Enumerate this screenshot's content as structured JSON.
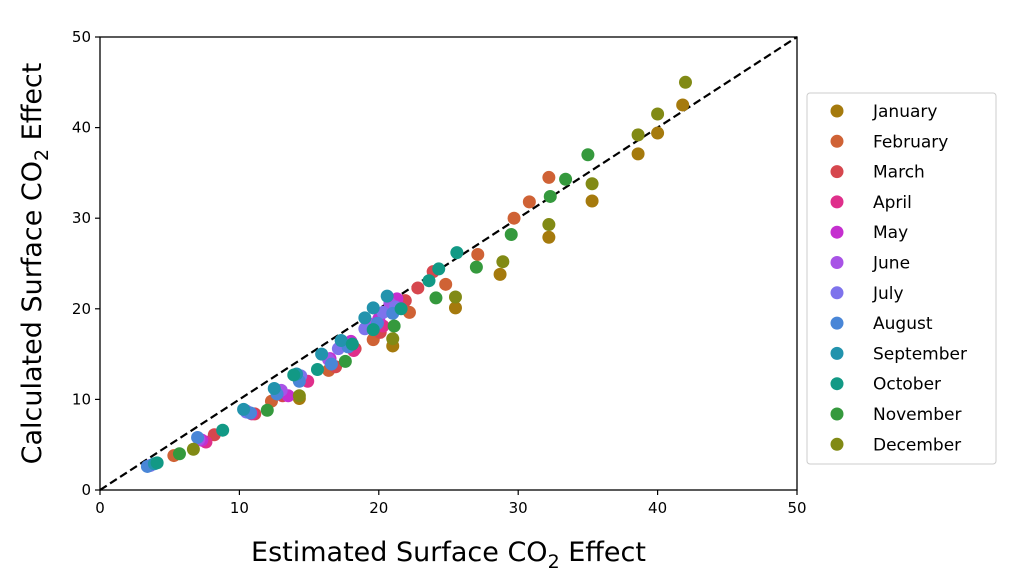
{
  "chart_data": {
    "type": "scatter",
    "xlabel": {
      "prefix": "Estimated Surface CO",
      "sub": "2",
      "suffix": " Effect"
    },
    "ylabel": {
      "prefix": "Calculated Surface CO",
      "sub": "2",
      "suffix": " Effect"
    },
    "xlim": [
      0,
      50
    ],
    "ylim": [
      0,
      50
    ],
    "xticks": [
      0,
      10,
      20,
      30,
      40,
      50
    ],
    "yticks": [
      0,
      10,
      20,
      30,
      40,
      50
    ],
    "grid": false,
    "legend_position": "outside-right",
    "reference_line": {
      "style": "dashed",
      "color": "#000000",
      "from": [
        0,
        0
      ],
      "to": [
        50,
        50
      ]
    },
    "series": [
      {
        "name": "January",
        "color": "#a57a0d",
        "points": [
          [
            14.3,
            10.1
          ],
          [
            21.0,
            15.9
          ],
          [
            25.5,
            20.1
          ],
          [
            28.7,
            23.8
          ],
          [
            32.2,
            27.9
          ],
          [
            35.3,
            31.9
          ],
          [
            38.6,
            37.1
          ],
          [
            40.0,
            39.4
          ],
          [
            41.8,
            42.5
          ]
        ]
      },
      {
        "name": "February",
        "color": "#cf6235",
        "points": [
          [
            5.3,
            3.8
          ],
          [
            12.3,
            9.8
          ],
          [
            16.4,
            13.2
          ],
          [
            19.6,
            16.6
          ],
          [
            22.2,
            19.6
          ],
          [
            24.8,
            22.7
          ],
          [
            27.1,
            26.0
          ],
          [
            29.7,
            30.0
          ],
          [
            30.8,
            31.8
          ],
          [
            32.2,
            34.5
          ]
        ]
      },
      {
        "name": "March",
        "color": "#d6474e",
        "points": [
          [
            8.2,
            6.1
          ],
          [
            11.1,
            8.4
          ],
          [
            13.1,
            10.4
          ],
          [
            16.9,
            13.6
          ],
          [
            18.3,
            15.6
          ],
          [
            20.1,
            17.4
          ],
          [
            21.9,
            20.9
          ],
          [
            22.8,
            22.3
          ],
          [
            23.9,
            24.1
          ]
        ]
      },
      {
        "name": "April",
        "color": "#df2f8b",
        "points": [
          [
            7.6,
            5.3
          ],
          [
            10.9,
            8.4
          ],
          [
            14.9,
            12.0
          ],
          [
            18.2,
            15.4
          ],
          [
            20.3,
            18.1
          ],
          [
            21.5,
            20.2
          ]
        ]
      },
      {
        "name": "May",
        "color": "#c52fcf",
        "points": [
          [
            7.3,
            5.5
          ],
          [
            10.6,
            8.6
          ],
          [
            13.5,
            10.4
          ],
          [
            16.5,
            14.5
          ],
          [
            18.0,
            16.4
          ],
          [
            20.0,
            18.9
          ],
          [
            21.3,
            21.1
          ]
        ]
      },
      {
        "name": "June",
        "color": "#a853e6",
        "points": [
          [
            7.1,
            5.6
          ],
          [
            10.5,
            8.7
          ],
          [
            13.0,
            11.0
          ],
          [
            16.4,
            14.4
          ],
          [
            17.9,
            16.0
          ],
          [
            19.4,
            18.3
          ],
          [
            20.8,
            20.6
          ]
        ]
      },
      {
        "name": "July",
        "color": "#7e73ec",
        "points": [
          [
            3.6,
            2.7
          ],
          [
            10.5,
            8.6
          ],
          [
            14.4,
            12.6
          ],
          [
            17.1,
            15.6
          ],
          [
            19.0,
            17.8
          ],
          [
            20.3,
            19.6
          ],
          [
            21.2,
            20.2
          ]
        ]
      },
      {
        "name": "August",
        "color": "#4986d7",
        "points": [
          [
            3.4,
            2.6
          ],
          [
            7.0,
            5.8
          ],
          [
            10.8,
            8.5
          ],
          [
            12.7,
            10.6
          ],
          [
            14.3,
            12.0
          ],
          [
            16.6,
            13.9
          ],
          [
            17.8,
            15.8
          ],
          [
            19.9,
            18.4
          ],
          [
            21.0,
            19.5
          ]
        ]
      },
      {
        "name": "September",
        "color": "#2293ad",
        "points": [
          [
            3.9,
            2.9
          ],
          [
            10.3,
            8.9
          ],
          [
            12.5,
            11.2
          ],
          [
            14.1,
            12.8
          ],
          [
            15.9,
            15.0
          ],
          [
            17.3,
            16.5
          ],
          [
            19.0,
            19.0
          ],
          [
            19.6,
            20.1
          ],
          [
            20.6,
            21.4
          ]
        ]
      },
      {
        "name": "October",
        "color": "#129985",
        "points": [
          [
            4.1,
            3.0
          ],
          [
            8.8,
            6.6
          ],
          [
            13.9,
            12.7
          ],
          [
            15.6,
            13.3
          ],
          [
            18.1,
            16.1
          ],
          [
            19.6,
            17.7
          ],
          [
            21.6,
            20.0
          ],
          [
            23.6,
            23.1
          ],
          [
            24.3,
            24.4
          ],
          [
            25.6,
            26.2
          ]
        ]
      },
      {
        "name": "November",
        "color": "#35993d",
        "points": [
          [
            5.7,
            4.0
          ],
          [
            12.0,
            8.8
          ],
          [
            17.6,
            14.2
          ],
          [
            21.1,
            18.1
          ],
          [
            24.1,
            21.2
          ],
          [
            27.0,
            24.6
          ],
          [
            29.5,
            28.2
          ],
          [
            32.3,
            32.4
          ],
          [
            33.4,
            34.3
          ],
          [
            35.0,
            37.0
          ]
        ]
      },
      {
        "name": "December",
        "color": "#818a15",
        "points": [
          [
            6.7,
            4.5
          ],
          [
            14.3,
            10.4
          ],
          [
            21.0,
            16.7
          ],
          [
            25.5,
            21.3
          ],
          [
            28.9,
            25.2
          ],
          [
            32.2,
            29.3
          ],
          [
            35.3,
            33.8
          ],
          [
            38.6,
            39.2
          ],
          [
            40.0,
            41.5
          ],
          [
            42.0,
            45.0
          ]
        ]
      }
    ]
  }
}
